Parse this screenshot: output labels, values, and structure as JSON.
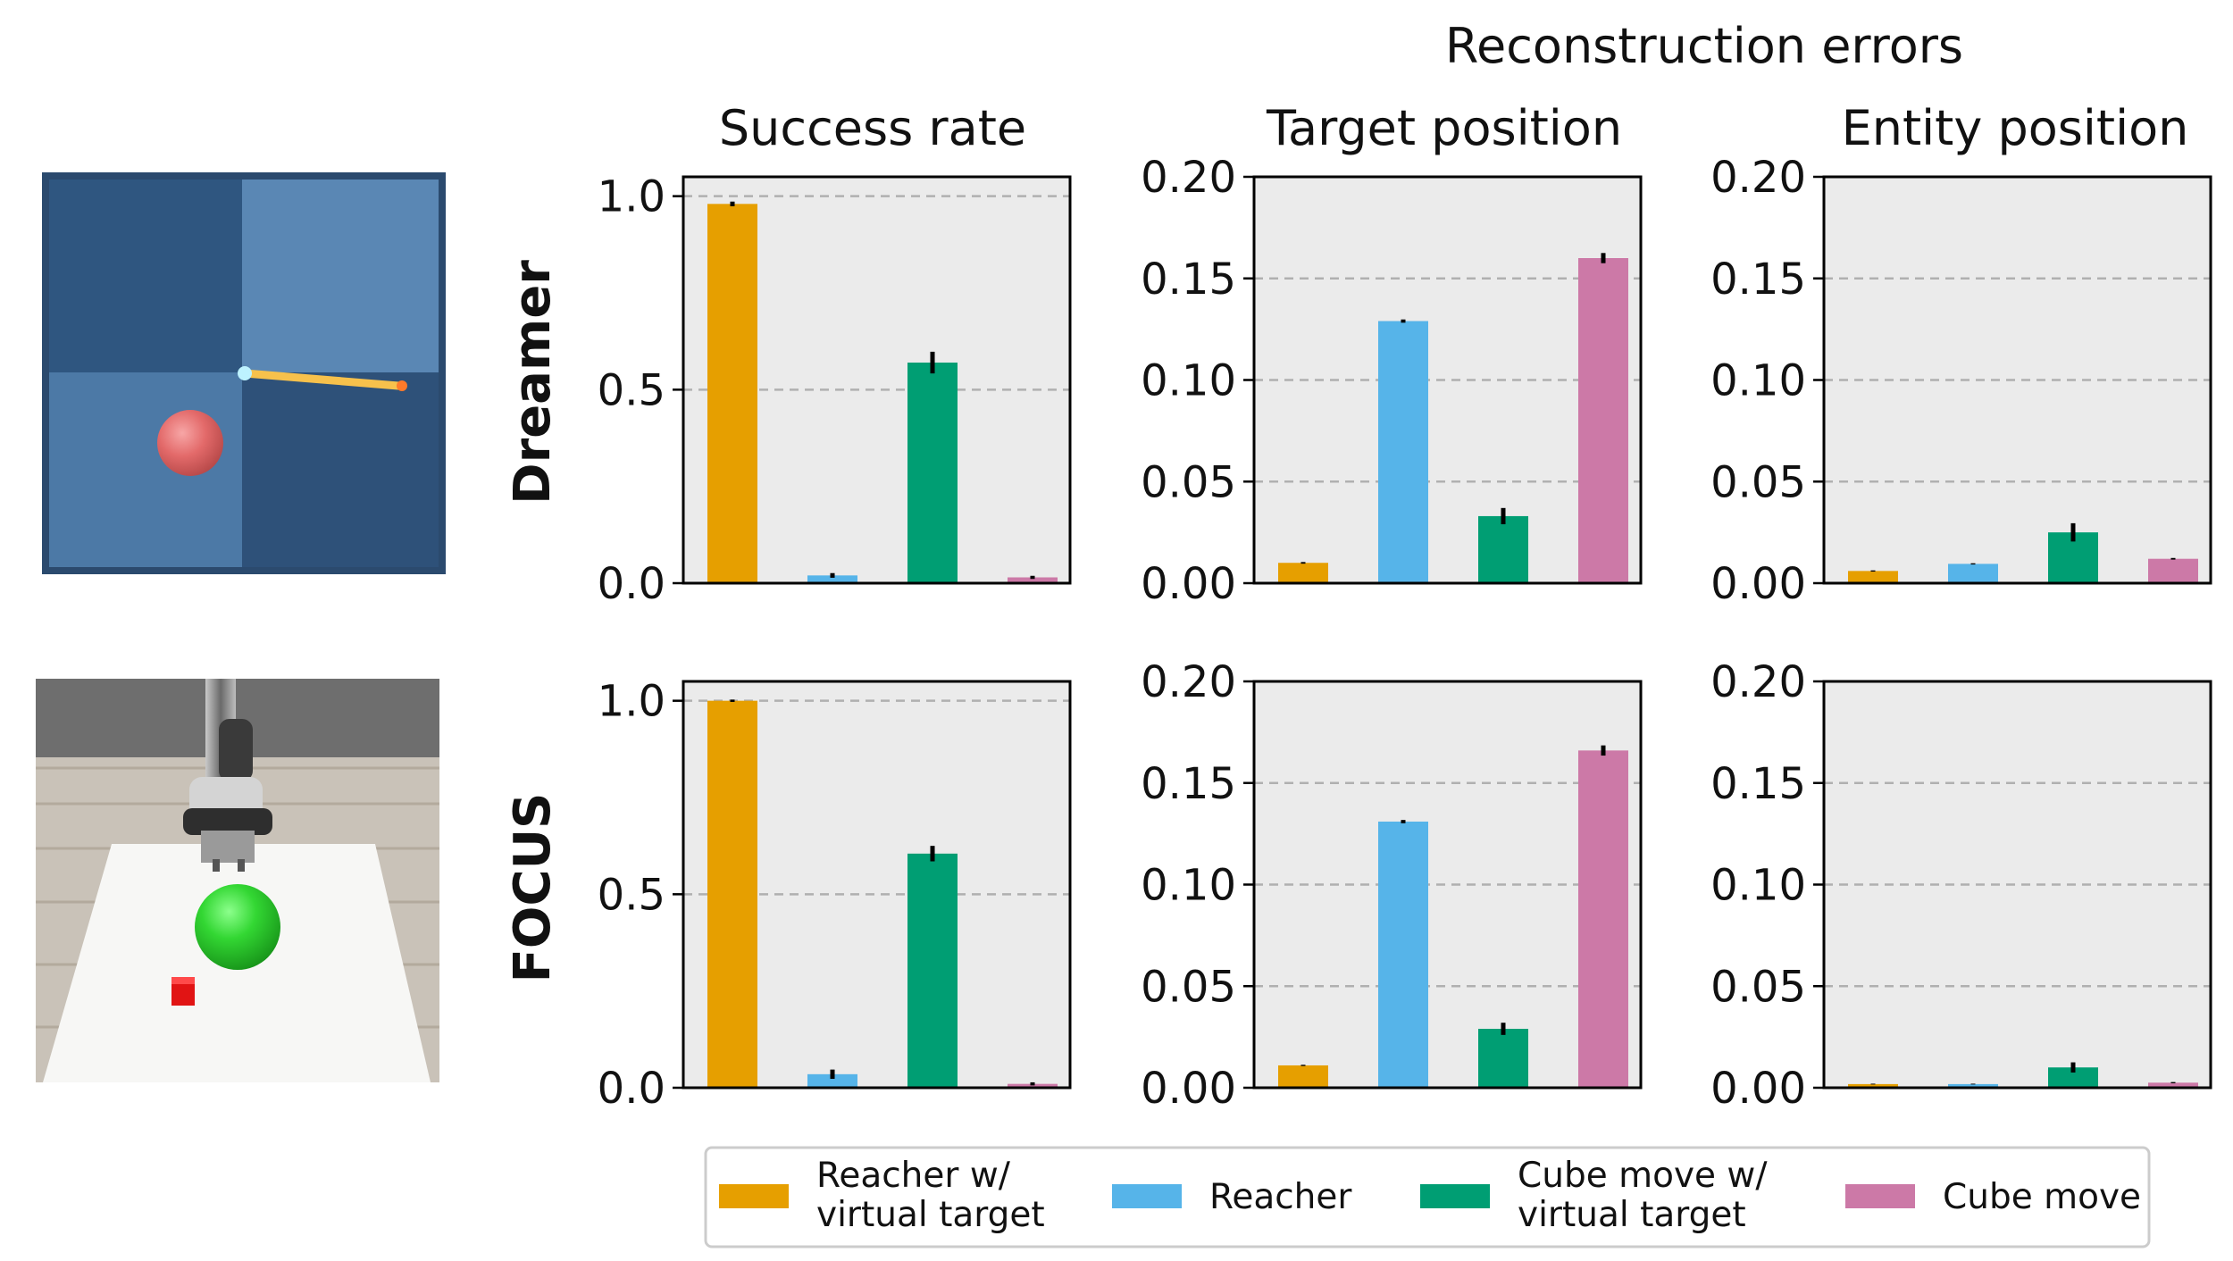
{
  "figure": {
    "header": "Reconstruction errors",
    "column_titles": [
      "Success rate",
      "Target position",
      "Entity position"
    ],
    "row_labels": [
      "Dreamer",
      "FOCUS"
    ]
  },
  "colors": {
    "Reacher w/ virtual target": "#E69F00",
    "Reacher": "#56B4E9",
    "Cube move w/ virtual target": "#009E73",
    "Cube move": "#CC79A7",
    "panel_bg": "#ebebeb",
    "grid": "#b0b0b0",
    "error_bar": "#000000"
  },
  "legend": {
    "entries": [
      {
        "lines": [
          "Reacher w/",
          "virtual target"
        ],
        "series": "Reacher w/ virtual target"
      },
      {
        "lines": [
          "Reacher"
        ],
        "series": "Reacher"
      },
      {
        "lines": [
          "Cube move w/",
          "virtual target"
        ],
        "series": "Cube move w/ virtual target"
      },
      {
        "lines": [
          "Cube move"
        ],
        "series": "Cube move"
      }
    ]
  },
  "chart_data": [
    {
      "type": "bar",
      "row": "Dreamer",
      "title": "Success rate",
      "categories": [
        "Reacher w/ virtual target",
        "Reacher",
        "Cube move w/ virtual target",
        "Cube move"
      ],
      "values": [
        0.98,
        0.02,
        0.57,
        0.015
      ],
      "errors": [
        0.006,
        0.006,
        0.028,
        0.004
      ],
      "ylim": [
        0,
        1.05
      ],
      "yticks": [
        "0.0",
        "0.5",
        "1.0"
      ],
      "ytick_values": [
        0,
        0.5,
        1.0
      ],
      "grid": "dashed horizontal"
    },
    {
      "type": "bar",
      "row": "Dreamer",
      "title": "Target position",
      "categories": [
        "Reacher w/ virtual target",
        "Reacher",
        "Cube move w/ virtual target",
        "Cube move"
      ],
      "values": [
        0.01,
        0.129,
        0.033,
        0.16
      ],
      "errors": [
        0.0004,
        0.0008,
        0.004,
        0.0025
      ],
      "ylim": [
        0,
        0.2
      ],
      "yticks": [
        "0.00",
        "0.05",
        "0.10",
        "0.15",
        "0.20"
      ],
      "ytick_values": [
        0,
        0.05,
        0.1,
        0.15,
        0.2
      ],
      "grid": "dashed horizontal"
    },
    {
      "type": "bar",
      "row": "Dreamer",
      "title": "Entity position",
      "categories": [
        "Reacher w/ virtual target",
        "Reacher",
        "Cube move w/ virtual target",
        "Cube move"
      ],
      "values": [
        0.006,
        0.0095,
        0.025,
        0.012
      ],
      "errors": [
        0.0003,
        0.0003,
        0.0045,
        0.0004
      ],
      "ylim": [
        0,
        0.2
      ],
      "yticks": [
        "0.00",
        "0.05",
        "0.10",
        "0.15",
        "0.20"
      ],
      "ytick_values": [
        0,
        0.05,
        0.1,
        0.15,
        0.2
      ],
      "grid": "dashed horizontal"
    },
    {
      "type": "bar",
      "row": "FOCUS",
      "title": "Success rate",
      "categories": [
        "Reacher w/ virtual target",
        "Reacher",
        "Cube move w/ virtual target",
        "Cube move"
      ],
      "values": [
        1.0,
        0.035,
        0.605,
        0.01
      ],
      "errors": [
        0.003,
        0.012,
        0.02,
        0.004
      ],
      "ylim": [
        0,
        1.05
      ],
      "yticks": [
        "0.0",
        "0.5",
        "1.0"
      ],
      "ytick_values": [
        0,
        0.5,
        1.0
      ],
      "grid": "dashed horizontal"
    },
    {
      "type": "bar",
      "row": "FOCUS",
      "title": "Target position",
      "categories": [
        "Reacher w/ virtual target",
        "Reacher",
        "Cube move w/ virtual target",
        "Cube move"
      ],
      "values": [
        0.011,
        0.131,
        0.029,
        0.166
      ],
      "errors": [
        0.0003,
        0.0008,
        0.003,
        0.0025
      ],
      "ylim": [
        0,
        0.2
      ],
      "yticks": [
        "0.00",
        "0.05",
        "0.10",
        "0.15",
        "0.20"
      ],
      "ytick_values": [
        0,
        0.05,
        0.1,
        0.15,
        0.2
      ],
      "grid": "dashed horizontal"
    },
    {
      "type": "bar",
      "row": "FOCUS",
      "title": "Entity position",
      "categories": [
        "Reacher w/ virtual target",
        "Reacher",
        "Cube move w/ virtual target",
        "Cube move"
      ],
      "values": [
        0.0018,
        0.0018,
        0.01,
        0.0025
      ],
      "errors": [
        0.0002,
        0.0002,
        0.0025,
        0.0003
      ],
      "ylim": [
        0,
        0.2
      ],
      "yticks": [
        "0.00",
        "0.05",
        "0.10",
        "0.15",
        "0.20"
      ],
      "ytick_values": [
        0,
        0.05,
        0.1,
        0.15,
        0.2
      ],
      "grid": "dashed horizontal"
    }
  ]
}
